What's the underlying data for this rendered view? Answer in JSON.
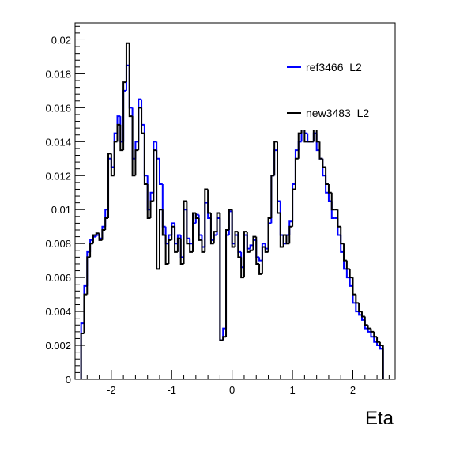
{
  "chart_data": {
    "type": "line",
    "step": true,
    "xlabel": "Eta",
    "ylabel": "",
    "xlim": [
      -2.6,
      2.7
    ],
    "ylim": [
      0,
      0.021
    ],
    "x_ticks": [
      -2,
      -1,
      0,
      1,
      2
    ],
    "x_tick_labels": [
      "-2",
      "-1",
      "0",
      "1",
      "2"
    ],
    "y_ticks": [
      0,
      0.002,
      0.004,
      0.006,
      0.008,
      0.01,
      0.012,
      0.014,
      0.016,
      0.018,
      0.02
    ],
    "y_tick_labels": [
      "0",
      "0.002",
      "0.004",
      "0.006",
      "0.008",
      "0.01",
      "0.012",
      "0.014",
      "0.016",
      "0.018",
      "0.02"
    ],
    "grid": false,
    "legend_position": "top-right",
    "bin_edges_range": [
      -2.5,
      2.5
    ],
    "n_bins": 100,
    "series": [
      {
        "name": "ref3466_L2",
        "color": "#0000ff",
        "values": [
          0.0033,
          0.0055,
          0.0075,
          0.0082,
          0.0084,
          0.0085,
          0.0083,
          0.009,
          0.01,
          0.013,
          0.0125,
          0.0145,
          0.0155,
          0.014,
          0.017,
          0.0185,
          0.016,
          0.013,
          0.014,
          0.0165,
          0.015,
          0.012,
          0.01,
          0.011,
          0.014,
          0.013,
          0.0115,
          0.009,
          0.008,
          0.0085,
          0.0092,
          0.008,
          0.0085,
          0.0072,
          0.01,
          0.0083,
          0.008,
          0.0092,
          0.0097,
          0.0085,
          0.0078,
          0.0104,
          0.0095,
          0.0082,
          0.0085,
          0.0095,
          0.0023,
          0.003,
          0.0085,
          0.0099,
          0.008,
          0.0085,
          0.0075,
          0.0066,
          0.0085,
          0.0077,
          0.0079,
          0.0082,
          0.0072,
          0.007,
          0.008,
          0.0077,
          0.0092,
          0.012,
          0.0135,
          0.0105,
          0.0085,
          0.008,
          0.0085,
          0.0093,
          0.0115,
          0.0135,
          0.014,
          0.015,
          0.0145,
          0.014,
          0.014,
          0.0145,
          0.0135,
          0.013,
          0.012,
          0.011,
          0.0105,
          0.0095,
          0.0095,
          0.0085,
          0.0075,
          0.0065,
          0.006,
          0.0055,
          0.0045,
          0.004,
          0.0038,
          0.0035,
          0.003,
          0.0028,
          0.0025,
          0.0022,
          0.002,
          0.0018
        ]
      },
      {
        "name": "new3483_L2",
        "color": "#000000",
        "values": [
          0.0027,
          0.005,
          0.0072,
          0.008,
          0.0085,
          0.0086,
          0.0082,
          0.0088,
          0.0095,
          0.0133,
          0.012,
          0.014,
          0.015,
          0.0135,
          0.0175,
          0.0198,
          0.0155,
          0.012,
          0.0135,
          0.016,
          0.0145,
          0.0115,
          0.0095,
          0.0105,
          0.0135,
          0.0065,
          0.01,
          0.0085,
          0.0068,
          0.0082,
          0.009,
          0.0075,
          0.0083,
          0.0068,
          0.0105,
          0.008,
          0.0075,
          0.0098,
          0.0095,
          0.0082,
          0.0075,
          0.0112,
          0.0098,
          0.008,
          0.0087,
          0.0098,
          0.0023,
          0.0025,
          0.0088,
          0.01,
          0.0078,
          0.0087,
          0.0072,
          0.006,
          0.0087,
          0.0075,
          0.0076,
          0.0084,
          0.0068,
          0.0062,
          0.0078,
          0.0075,
          0.0095,
          0.012,
          0.014,
          0.0098,
          0.0078,
          0.0085,
          0.008,
          0.009,
          0.0112,
          0.013,
          0.0145,
          0.0155,
          0.014,
          0.014,
          0.014,
          0.015,
          0.014,
          0.013,
          0.0125,
          0.0115,
          0.011,
          0.01,
          0.01,
          0.009,
          0.008,
          0.007,
          0.0065,
          0.006,
          0.005,
          0.0045,
          0.004,
          0.0037,
          0.0032,
          0.003,
          0.0028,
          0.0025,
          0.0022,
          0.002
        ]
      }
    ]
  }
}
